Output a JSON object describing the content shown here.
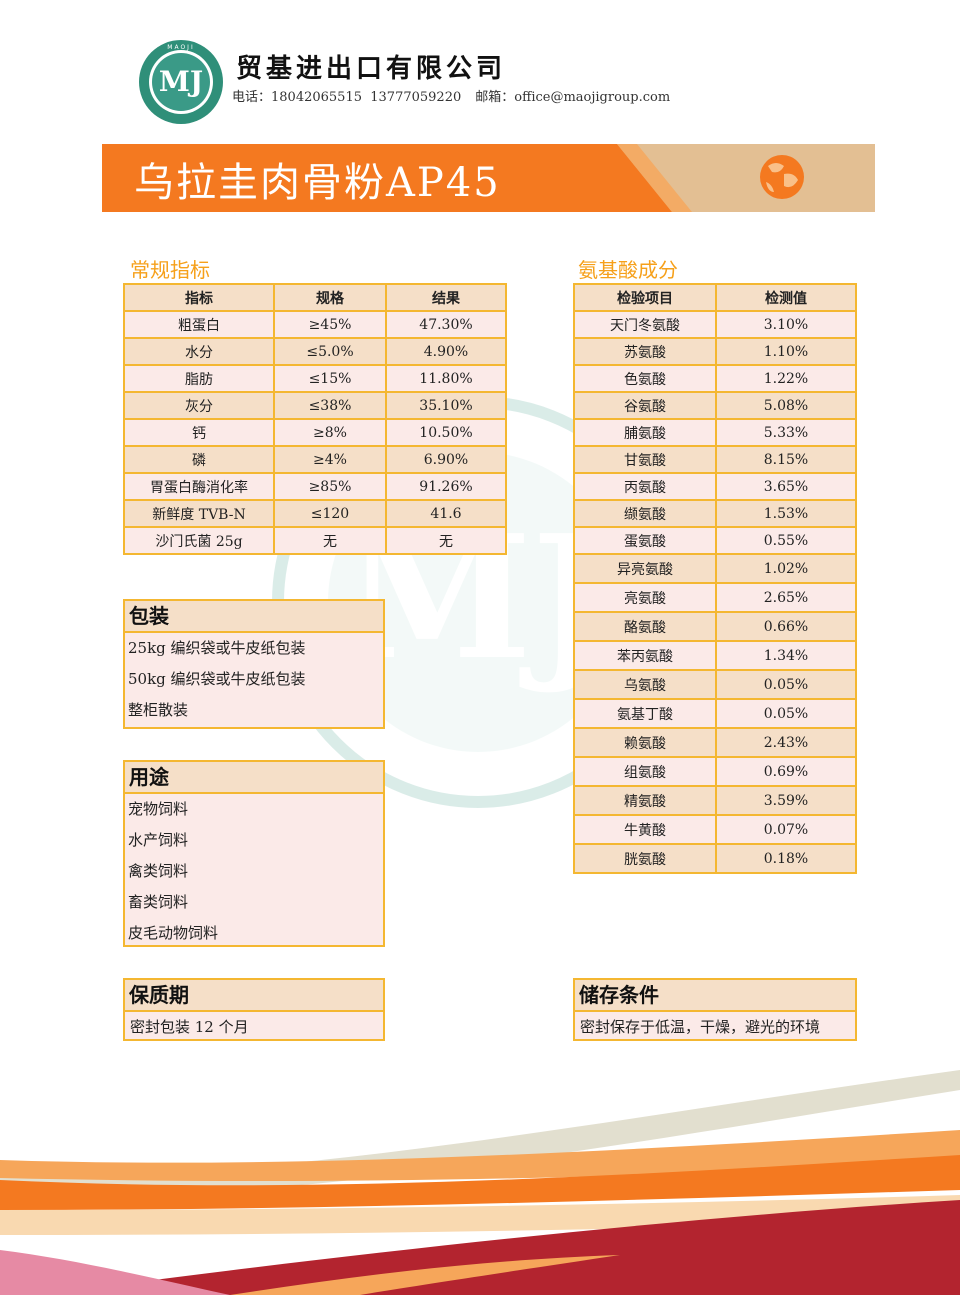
{
  "header": {
    "logo_text": "MJ",
    "logo_ring_text": "MAOJI",
    "company_name": "贸基进出口有限公司",
    "phone_label": "电话：",
    "phones": "18042065515  13777059220",
    "email_label": "邮箱：",
    "email": "office@maojigroup.com"
  },
  "banner": {
    "title": "乌拉圭肉骨粉AP45",
    "icon": "globe-icon"
  },
  "colors": {
    "banner_orange": "#f47920",
    "banner_tan": "#e3bf93",
    "table_border": "#f4b731",
    "row_light": "#fbeae8",
    "row_dark": "#f5dfc8",
    "section_title": "#f6a01a"
  },
  "specs": {
    "title": "常规指标",
    "headers": [
      "指标",
      "规格",
      "结果"
    ],
    "rows": [
      [
        "粗蛋白",
        "≥45%",
        "47.30%"
      ],
      [
        "水分",
        "≤5.0%",
        "4.90%"
      ],
      [
        "脂肪",
        "≤15%",
        "11.80%"
      ],
      [
        "灰分",
        "≤38%",
        "35.10%"
      ],
      [
        "钙",
        "≥8%",
        "10.50%"
      ],
      [
        "磷",
        "≥4%",
        "6.90%"
      ],
      [
        "胃蛋白酶消化率",
        "≥85%",
        "91.26%"
      ],
      [
        "新鲜度 TVB-N",
        "≤120",
        "41.6"
      ],
      [
        "沙门氏菌 25g",
        "无",
        "无"
      ]
    ]
  },
  "amino": {
    "title": "氨基酸成分",
    "headers": [
      "检验项目",
      "检测值"
    ],
    "rows": [
      [
        "天门冬氨酸",
        "3.10%"
      ],
      [
        "苏氨酸",
        "1.10%"
      ],
      [
        "色氨酸",
        "1.22%"
      ],
      [
        "谷氨酸",
        "5.08%"
      ],
      [
        "脯氨酸",
        "5.33%"
      ],
      [
        "甘氨酸",
        "8.15%"
      ],
      [
        "丙氨酸",
        "3.65%"
      ],
      [
        "缬氨酸",
        "1.53%"
      ],
      [
        "蛋氨酸",
        "0.55%"
      ],
      [
        "异亮氨酸",
        "1.02%"
      ],
      [
        "亮氨酸",
        "2.65%"
      ],
      [
        "酪氨酸",
        "0.66%"
      ],
      [
        "苯丙氨酸",
        "1.34%"
      ],
      [
        "乌氨酸",
        "0.05%"
      ],
      [
        "氨基丁酸",
        "0.05%"
      ],
      [
        "赖氨酸",
        "2.43%"
      ],
      [
        "组氨酸",
        "0.69%"
      ],
      [
        "精氨酸",
        "3.59%"
      ],
      [
        "牛黄酸",
        "0.07%"
      ],
      [
        "胱氨酸",
        "0.18%"
      ]
    ]
  },
  "packaging": {
    "title": "包装",
    "lines": [
      "25kg 编织袋或牛皮纸包装",
      "50kg 编织袋或牛皮纸包装",
      "整柜散装"
    ]
  },
  "usage": {
    "title": "用途",
    "lines": [
      "宠物饲料",
      "水产饲料",
      "禽类饲料",
      "畜类饲料",
      "皮毛动物饲料"
    ]
  },
  "shelf_life": {
    "title": "保质期",
    "lines": [
      "密封包装 12 个月"
    ]
  },
  "storage": {
    "title": "储存条件",
    "lines": [
      "密封保存于低温，干燥，避光的环境"
    ]
  }
}
